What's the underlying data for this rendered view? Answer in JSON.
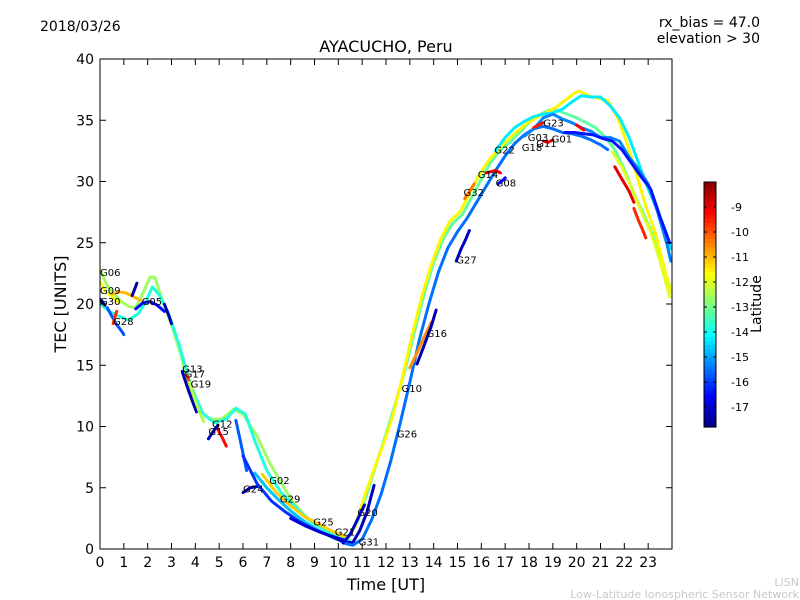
{
  "header": {
    "date": "2018/03/26",
    "rx_bias": "rx_bias = 47.0",
    "elevation": "elevation > 30"
  },
  "footer": {
    "line1": "LISN",
    "line2": "Low-Latitude Ionospheric Sensor Network"
  },
  "colors": {
    "background": "#ffffff",
    "axis": "#000000",
    "footer_text": "#c8c8c8"
  },
  "chart_data": {
    "type": "line",
    "title": "AYACUCHO, Peru",
    "xlabel": "Time [UT]",
    "ylabel": "TEC [UNITS]",
    "xlim": [
      0,
      24
    ],
    "ylim": [
      0,
      40
    ],
    "xticks": [
      "0",
      "1",
      "2",
      "3",
      "4",
      "5",
      "6",
      "7",
      "8",
      "9",
      "10",
      "11",
      "12",
      "13",
      "14",
      "15",
      "16",
      "17",
      "18",
      "19",
      "20",
      "21",
      "22",
      "23"
    ],
    "yticks": [
      "0",
      "5",
      "10",
      "15",
      "20",
      "25",
      "30",
      "35",
      "40"
    ],
    "grid": false,
    "colorbar": {
      "label": "Latitude",
      "range": [
        -17.8,
        -8.0
      ],
      "ticks": [
        "-9",
        "-10",
        "-11",
        "-12",
        "-13",
        "-14",
        "-15",
        "-16",
        "-17"
      ],
      "tick_values": [
        -9,
        -10,
        -11,
        -12,
        -13,
        -14,
        -15,
        -16,
        -17
      ],
      "colormap": "jet"
    },
    "satellite_labels": [
      {
        "text": "G06",
        "x": 0.0,
        "y": 22.3
      },
      {
        "text": "G09",
        "x": 0.0,
        "y": 20.8
      },
      {
        "text": "G30",
        "x": 0.0,
        "y": 19.9
      },
      {
        "text": "G05",
        "x": 1.75,
        "y": 19.9
      },
      {
        "text": "G28",
        "x": 0.55,
        "y": 18.3
      },
      {
        "text": "G13",
        "x": 3.45,
        "y": 14.4
      },
      {
        "text": "G17",
        "x": 3.55,
        "y": 14.0
      },
      {
        "text": "G19",
        "x": 3.8,
        "y": 13.2
      },
      {
        "text": "G12",
        "x": 4.7,
        "y": 9.9
      },
      {
        "text": "G15",
        "x": 4.55,
        "y": 9.3
      },
      {
        "text": "G24",
        "x": 6.0,
        "y": 4.6
      },
      {
        "text": "G02",
        "x": 7.1,
        "y": 5.3
      },
      {
        "text": "G29",
        "x": 7.55,
        "y": 3.8
      },
      {
        "text": "G25",
        "x": 8.95,
        "y": 1.9
      },
      {
        "text": "G21",
        "x": 9.85,
        "y": 1.1
      },
      {
        "text": "G20",
        "x": 10.8,
        "y": 2.7
      },
      {
        "text": "G31",
        "x": 10.85,
        "y": 0.3
      },
      {
        "text": "G26",
        "x": 12.45,
        "y": 9.1
      },
      {
        "text": "G10",
        "x": 12.65,
        "y": 12.8
      },
      {
        "text": "G16",
        "x": 13.7,
        "y": 17.3
      },
      {
        "text": "G27",
        "x": 14.95,
        "y": 23.3
      },
      {
        "text": "G32",
        "x": 15.25,
        "y": 28.8
      },
      {
        "text": "G14",
        "x": 15.85,
        "y": 30.3
      },
      {
        "text": "G08",
        "x": 16.6,
        "y": 29.6
      },
      {
        "text": "G22",
        "x": 16.55,
        "y": 32.3
      },
      {
        "text": "G18",
        "x": 17.7,
        "y": 32.5
      },
      {
        "text": "G03",
        "x": 17.95,
        "y": 33.3
      },
      {
        "text": "G11",
        "x": 18.3,
        "y": 32.8
      },
      {
        "text": "G01",
        "x": 18.95,
        "y": 33.2
      },
      {
        "text": "G23",
        "x": 18.6,
        "y": 34.5
      }
    ],
    "series": [
      {
        "lat": -12.6,
        "x": [
          0,
          0.3,
          0.6,
          0.9,
          1.2,
          1.5,
          1.8,
          2.1,
          2.3,
          2.6,
          3.0,
          3.4,
          3.7,
          4.1,
          4.6,
          5.1,
          5.6,
          6.0,
          6.6,
          7.1,
          7.6,
          8.1,
          8.6,
          9.1,
          9.6,
          10.1,
          10.5
        ],
        "y": [
          22.8,
          21.5,
          20.8,
          20.2,
          19.8,
          19.7,
          20.9,
          22.2,
          22.2,
          20.4,
          18.3,
          15.8,
          13.5,
          11.5,
          10.6,
          10.6,
          11.4,
          11.0,
          9.2,
          7.1,
          5.4,
          3.8,
          2.7,
          2.0,
          1.4,
          0.9,
          0.7
        ]
      },
      {
        "lat": -13.8,
        "x": [
          0,
          0.4,
          0.8,
          1.2,
          1.6,
          1.9,
          2.2,
          2.5,
          2.9,
          3.3,
          3.8,
          4.3,
          4.8,
          5.3,
          5.7,
          6.1,
          6.5,
          7.0,
          7.6,
          8.2,
          8.8,
          9.4,
          10.0,
          10.5
        ],
        "y": [
          20.0,
          19.4,
          19.0,
          18.7,
          19.2,
          20.1,
          21.4,
          20.7,
          19.1,
          16.8,
          13.4,
          11.1,
          10.3,
          10.6,
          11.5,
          11.0,
          8.8,
          6.4,
          4.6,
          3.4,
          2.3,
          1.6,
          0.9,
          0.6
        ]
      },
      {
        "lat": -11.8,
        "x": [
          0,
          0.2,
          0.5,
          0.8
        ],
        "y": [
          21.8,
          21.1,
          20.6,
          20.1
        ]
      },
      {
        "lat": -11.0,
        "x": [
          0.5,
          0.8,
          1.1,
          1.4,
          1.7
        ],
        "y": [
          20.8,
          21.0,
          20.9,
          20.6,
          20.3
        ]
      },
      {
        "lat": -16.5,
        "x": [
          1.5,
          1.8,
          2.1,
          2.4,
          2.7
        ],
        "y": [
          19.6,
          20.1,
          20.2,
          19.9,
          19.4
        ]
      },
      {
        "lat": -17.3,
        "x": [
          2.7,
          2.8,
          2.9,
          3.0
        ],
        "y": [
          20.0,
          19.5,
          19.0,
          18.4
        ]
      },
      {
        "lat": -17.4,
        "x": [
          1.35,
          1.45,
          1.55
        ],
        "y": [
          20.7,
          21.2,
          21.7
        ]
      },
      {
        "lat": -15.8,
        "x": [
          0.3,
          0.5,
          0.7,
          0.9,
          1.0
        ],
        "y": [
          19.7,
          19.0,
          18.3,
          17.8,
          17.5
        ]
      },
      {
        "lat": -9.6,
        "x": [
          0.55,
          0.62,
          0.7
        ],
        "y": [
          18.4,
          18.9,
          19.4
        ]
      },
      {
        "lat": -17.6,
        "x": [
          0,
          0.1,
          0.2
        ],
        "y": [
          20.4,
          20.2,
          19.9
        ]
      },
      {
        "lat": -17.3,
        "x": [
          3.45,
          3.65,
          3.85,
          4.05
        ],
        "y": [
          14.5,
          13.3,
          12.2,
          11.2
        ]
      },
      {
        "lat": -9.8,
        "x": [
          3.65,
          3.8,
          3.95
        ],
        "y": [
          14.2,
          13.3,
          12.4
        ]
      },
      {
        "lat": -12.4,
        "x": [
          3.75,
          3.95,
          4.15,
          4.35
        ],
        "y": [
          13.6,
          12.4,
          11.3,
          10.4
        ]
      },
      {
        "lat": -9.3,
        "x": [
          4.9,
          5.1,
          5.3
        ],
        "y": [
          9.9,
          9.2,
          8.4
        ]
      },
      {
        "lat": -17.1,
        "x": [
          4.55,
          4.75,
          4.95
        ],
        "y": [
          9.0,
          9.6,
          10.1
        ]
      },
      {
        "lat": -15.7,
        "x": [
          5.7,
          5.85,
          6.0,
          6.15
        ],
        "y": [
          10.5,
          9.2,
          7.8,
          6.4
        ]
      },
      {
        "lat": -17.4,
        "x": [
          6.0,
          6.3,
          6.6
        ],
        "y": [
          4.6,
          5.0,
          5.1
        ]
      },
      {
        "lat": -14.7,
        "x": [
          6.5,
          7.0,
          7.5,
          8.0,
          8.6,
          9.2,
          9.8,
          10.3,
          10.6
        ],
        "y": [
          6.2,
          5.0,
          4.0,
          3.1,
          2.2,
          1.5,
          0.9,
          0.5,
          0.4
        ]
      },
      {
        "lat": -16.1,
        "x": [
          6.0,
          6.6,
          7.2,
          7.8,
          8.4,
          9.0,
          9.6,
          10.2,
          10.6
        ],
        "y": [
          7.6,
          5.3,
          3.9,
          3.0,
          2.2,
          1.6,
          1.1,
          0.6,
          0.4
        ]
      },
      {
        "lat": -11.2,
        "x": [
          6.8,
          7.4,
          8.0,
          8.6,
          9.2,
          9.8,
          10.3
        ],
        "y": [
          6.1,
          4.6,
          3.5,
          2.6,
          2.0,
          1.4,
          1.0
        ]
      },
      {
        "lat": -17.0,
        "x": [
          8.0,
          8.6,
          9.2,
          9.8,
          10.3
        ],
        "y": [
          2.5,
          1.9,
          1.4,
          1.0,
          0.7
        ]
      },
      {
        "lat": -17.2,
        "x": [
          9.8,
          10.2,
          10.6,
          10.9,
          11.2,
          11.5
        ],
        "y": [
          1.0,
          0.6,
          0.5,
          1.5,
          3.0,
          5.2
        ]
      },
      {
        "lat": -15.5,
        "x": [
          10.2,
          10.6,
          11.0,
          11.4,
          11.8,
          12.2,
          12.6,
          13.0,
          13.4,
          13.8,
          14.2,
          14.6,
          15.0,
          15.4,
          15.8,
          16.2,
          16.6,
          17.0,
          17.4,
          17.8,
          18.2,
          18.6,
          19.0,
          19.4,
          19.8,
          20.2,
          20.6,
          21.0,
          21.3
        ],
        "y": [
          0.5,
          0.3,
          0.8,
          2.4,
          4.5,
          7.2,
          10.3,
          13.6,
          17.1,
          20.0,
          22.6,
          24.6,
          25.9,
          27.0,
          28.3,
          29.6,
          30.9,
          32.1,
          33.1,
          33.8,
          34.3,
          34.5,
          34.3,
          34.0,
          33.9,
          33.7,
          33.4,
          33.0,
          32.6
        ]
      },
      {
        "lat": -13.2,
        "x": [
          10.4,
          10.8,
          11.2,
          11.6,
          12.0,
          12.4,
          12.8,
          13.2,
          13.6,
          14.0,
          14.4,
          14.8,
          15.2,
          15.6,
          16.0,
          16.4,
          16.8,
          17.2,
          17.6,
          18.0,
          18.4,
          18.8,
          19.2,
          19.6,
          20.0,
          20.4,
          20.8,
          21.2,
          21.6,
          22.0,
          22.4,
          22.8,
          23.2,
          23.6,
          23.9
        ],
        "y": [
          1.0,
          2.2,
          4.5,
          7.0,
          9.4,
          11.9,
          14.6,
          17.8,
          20.8,
          23.4,
          25.3,
          26.6,
          27.3,
          28.7,
          30.2,
          31.6,
          32.6,
          33.2,
          34.0,
          34.8,
          35.4,
          35.8,
          35.8,
          35.5,
          35.2,
          34.8,
          34.4,
          33.6,
          32.6,
          31.0,
          29.0,
          27.4,
          25.6,
          23.0,
          21.5
        ]
      },
      {
        "lat": -11.6,
        "x": [
          10.7,
          11.1,
          11.5,
          11.9,
          12.3,
          12.7,
          13.1,
          13.5,
          13.9,
          14.3,
          14.7,
          15.1,
          15.5,
          15.9,
          16.3,
          16.7,
          17.1,
          17.5,
          17.9,
          18.3,
          18.7,
          19.1,
          19.5,
          19.9,
          20.1,
          20.5,
          20.9,
          21.3,
          21.7,
          22.1,
          22.5,
          22.9,
          23.3,
          23.7,
          23.95
        ],
        "y": [
          1.8,
          4.3,
          6.5,
          8.6,
          11.0,
          14.1,
          17.5,
          20.6,
          23.2,
          25.3,
          26.8,
          27.5,
          29.0,
          30.5,
          31.7,
          32.6,
          33.4,
          34.1,
          34.7,
          35.2,
          35.6,
          36.0,
          36.6,
          37.2,
          37.4,
          37.0,
          36.8,
          36.6,
          35.3,
          33.2,
          30.6,
          28.0,
          25.8,
          22.8,
          21.0
        ]
      },
      {
        "lat": -14.3,
        "x": [
          16.6,
          17.0,
          17.4,
          17.8,
          18.2,
          18.6,
          19.0,
          19.4,
          19.8,
          20.2,
          20.6,
          21.0,
          21.4,
          21.8,
          22.2,
          22.6,
          23.0,
          23.4,
          23.8,
          23.95
        ],
        "y": [
          32.5,
          33.6,
          34.4,
          34.9,
          35.3,
          35.5,
          35.6,
          35.9,
          36.5,
          37.0,
          36.9,
          36.9,
          36.2,
          35.2,
          33.6,
          31.5,
          29.4,
          27.6,
          25.6,
          24.5
        ]
      },
      {
        "lat": -15.3,
        "x": [
          17.8,
          18.2,
          18.6,
          19.0,
          19.4,
          19.8,
          20.2,
          20.6,
          21.0,
          21.4,
          21.8,
          22.2,
          22.6,
          23.0,
          23.4,
          23.8,
          23.95
        ],
        "y": [
          33.7,
          34.3,
          35.2,
          35.5,
          35.1,
          34.8,
          34.4,
          34.1,
          33.6,
          33.6,
          33.3,
          32.0,
          31.0,
          29.8,
          27.5,
          24.8,
          23.5
        ]
      },
      {
        "lat": -16.4,
        "x": [
          19.5,
          19.9,
          20.3,
          20.7,
          21.1,
          21.5,
          21.9,
          22.3,
          22.7,
          23.1,
          23.5,
          23.9
        ],
        "y": [
          34.0,
          34.0,
          33.9,
          33.8,
          33.5,
          33.3,
          32.6,
          31.5,
          30.4,
          29.4,
          27.1,
          25.0
        ]
      },
      {
        "lat": -12.0,
        "x": [
          21.5,
          21.9,
          22.3,
          22.7,
          23.1,
          23.5,
          23.9
        ],
        "y": [
          32.4,
          31.2,
          29.5,
          27.6,
          25.9,
          23.5,
          20.6
        ]
      },
      {
        "lat": -9.0,
        "x": [
          21.6,
          21.9,
          22.2,
          22.4
        ],
        "y": [
          31.2,
          30.2,
          29.2,
          28.3
        ]
      },
      {
        "lat": -9.6,
        "x": [
          22.4,
          22.6,
          22.8,
          22.9
        ],
        "y": [
          27.8,
          26.8,
          25.9,
          25.4
        ]
      },
      {
        "lat": -9.2,
        "x": [
          20.0,
          20.15,
          20.3
        ],
        "y": [
          34.6,
          34.4,
          34.2
        ]
      },
      {
        "lat": -9.0,
        "x": [
          18.6,
          18.8,
          19.0
        ],
        "y": [
          33.3,
          33.2,
          33.4
        ]
      },
      {
        "lat": -9.4,
        "x": [
          18.2,
          18.4,
          18.6
        ],
        "y": [
          34.4,
          34.6,
          34.8
        ]
      },
      {
        "lat": -9.0,
        "x": [
          16.2,
          16.4,
          16.6,
          16.8
        ],
        "y": [
          30.7,
          30.8,
          30.9,
          30.7
        ]
      },
      {
        "lat": -10.4,
        "x": [
          15.3,
          15.5,
          15.7
        ],
        "y": [
          28.6,
          29.2,
          29.8
        ]
      },
      {
        "lat": -10.6,
        "x": [
          13.0,
          13.3,
          13.6,
          13.9
        ],
        "y": [
          14.8,
          16.0,
          17.3,
          18.5
        ]
      },
      {
        "lat": -17.3,
        "x": [
          13.3,
          13.6,
          13.9,
          14.1
        ],
        "y": [
          15.1,
          16.6,
          18.2,
          19.5
        ]
      },
      {
        "lat": -17.1,
        "x": [
          14.95,
          15.15,
          15.35,
          15.5
        ],
        "y": [
          23.5,
          24.5,
          25.3,
          26.0
        ]
      },
      {
        "lat": -16.4,
        "x": [
          16.7,
          16.9,
          17.0
        ],
        "y": [
          29.8,
          30.1,
          30.3
        ]
      },
      {
        "lat": -17.0,
        "x": [
          10.2,
          10.5,
          10.8,
          11.1
        ],
        "y": [
          0.5,
          1.2,
          2.4,
          3.6
        ]
      }
    ]
  }
}
